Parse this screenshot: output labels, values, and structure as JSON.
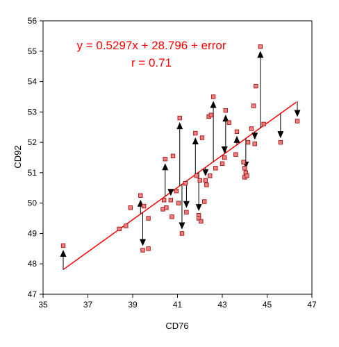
{
  "chart_data": {
    "type": "scatter",
    "title": "",
    "xlabel": "CD76",
    "ylabel": "CD92",
    "xlim": [
      35,
      47
    ],
    "ylim": [
      47,
      56
    ],
    "x_ticks": [
      "35",
      "37",
      "39",
      "41",
      "43",
      "45",
      "47"
    ],
    "y_ticks": [
      "47",
      "48",
      "49",
      "50",
      "51",
      "52",
      "53",
      "54",
      "55",
      "56"
    ],
    "grid": false,
    "legend": "none",
    "annotations": [
      "y = 0.5297x + 28.796 + error",
      "r = 0.71"
    ],
    "annotation_color": "#ff0000",
    "marker_fill": "#f08080",
    "marker_stroke": "#a01010",
    "arrow_color": "#000000",
    "fit_line": {
      "slope": 0.5297,
      "intercept": 28.796,
      "x_range": [
        35.9,
        46.3
      ],
      "color": "#ff0000"
    },
    "points": [
      {
        "x": 35.9,
        "y": 48.6,
        "fit": 47.81
      },
      {
        "x": 38.4,
        "y": 49.15
      },
      {
        "x": 38.7,
        "y": 49.25
      },
      {
        "x": 38.9,
        "y": 49.85
      },
      {
        "x": 39.35,
        "y": 50.25,
        "fit": 49.64
      },
      {
        "x": 39.45,
        "y": 48.45,
        "fit": 49.69
      },
      {
        "x": 39.5,
        "y": 49.9
      },
      {
        "x": 39.7,
        "y": 48.5
      },
      {
        "x": 39.7,
        "y": 49.5
      },
      {
        "x": 40.35,
        "y": 49.8
      },
      {
        "x": 40.4,
        "y": 50.1
      },
      {
        "x": 40.45,
        "y": 51.45,
        "fit": 50.22
      },
      {
        "x": 40.5,
        "y": 49.85
      },
      {
        "x": 40.7,
        "y": 50.1,
        "fit": 50.36
      },
      {
        "x": 40.75,
        "y": 49.55
      },
      {
        "x": 40.8,
        "y": 51.55
      },
      {
        "x": 40.95,
        "y": 50.4
      },
      {
        "x": 41.05,
        "y": 50.0
      },
      {
        "x": 41.1,
        "y": 52.8,
        "fit": 50.57
      },
      {
        "x": 41.2,
        "y": 49.0,
        "fit": 50.62
      },
      {
        "x": 41.35,
        "y": 50.65
      },
      {
        "x": 41.4,
        "y": 49.7,
        "fit": 50.73
      },
      {
        "x": 41.8,
        "y": 52.3,
        "fit": 50.94
      },
      {
        "x": 41.85,
        "y": 50.9
      },
      {
        "x": 41.95,
        "y": 49.6,
        "fit": 51.02
      },
      {
        "x": 41.95,
        "y": 49.5
      },
      {
        "x": 42.0,
        "y": 50.75
      },
      {
        "x": 42.05,
        "y": 49.4
      },
      {
        "x": 42.1,
        "y": 52.15
      },
      {
        "x": 42.2,
        "y": 50.05
      },
      {
        "x": 42.25,
        "y": 50.75,
        "fit": 51.18
      },
      {
        "x": 42.3,
        "y": 50.6
      },
      {
        "x": 42.4,
        "y": 52.85
      },
      {
        "x": 42.45,
        "y": 50.9
      },
      {
        "x": 42.5,
        "y": 52.9
      },
      {
        "x": 42.6,
        "y": 53.5,
        "fit": 51.36
      },
      {
        "x": 42.7,
        "y": 51.15
      },
      {
        "x": 43.0,
        "y": 51.3
      },
      {
        "x": 43.1,
        "y": 51.5,
        "fit": 51.63
      },
      {
        "x": 43.15,
        "y": 53.05,
        "fit": 51.65
      },
      {
        "x": 43.3,
        "y": 52.65
      },
      {
        "x": 43.6,
        "y": 51.6
      },
      {
        "x": 43.65,
        "y": 52.35,
        "fit": 51.92
      },
      {
        "x": 43.95,
        "y": 51.35
      },
      {
        "x": 44.0,
        "y": 51.15
      },
      {
        "x": 44.0,
        "y": 50.85
      },
      {
        "x": 44.05,
        "y": 51.0,
        "fit": 52.13
      },
      {
        "x": 44.1,
        "y": 50.9
      },
      {
        "x": 44.15,
        "y": 52.0
      },
      {
        "x": 44.3,
        "y": 52.45
      },
      {
        "x": 44.4,
        "y": 53.2
      },
      {
        "x": 44.45,
        "y": 51.95,
        "fit": 52.34
      },
      {
        "x": 44.5,
        "y": 53.85
      },
      {
        "x": 44.7,
        "y": 55.15,
        "fit": 52.47
      },
      {
        "x": 44.85,
        "y": 52.6
      },
      {
        "x": 45.6,
        "y": 52.0,
        "fit": 52.95
      },
      {
        "x": 46.35,
        "y": 52.7,
        "fit": 53.35
      }
    ]
  }
}
